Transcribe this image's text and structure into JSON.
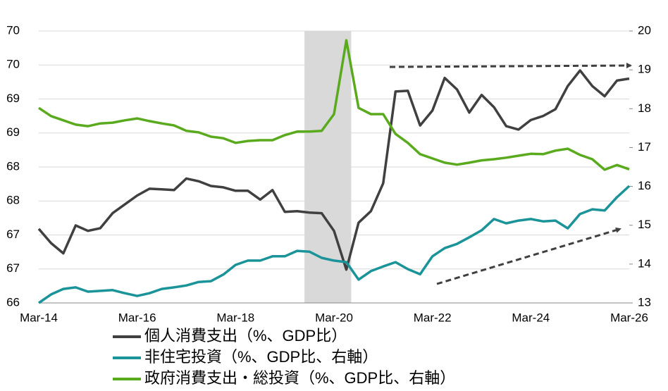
{
  "chart_data": {
    "type": "line",
    "categories": [
      "Mar-14",
      null,
      null,
      null,
      null,
      null,
      null,
      null,
      "Mar-16",
      null,
      null,
      null,
      null,
      null,
      null,
      null,
      "Mar-18",
      null,
      null,
      null,
      null,
      null,
      null,
      null,
      "Mar-20",
      null,
      null,
      null,
      null,
      null,
      null,
      null,
      "Mar-22",
      null,
      null,
      null,
      null,
      null,
      null,
      null,
      "Mar-24",
      null,
      null,
      null,
      null,
      null,
      null,
      null,
      "Mar-26"
    ],
    "series": [
      {
        "name": "個人消費支出（%、GDP比）",
        "color": "#404040",
        "axis": "y",
        "values": [
          67.09,
          66.88,
          66.73,
          67.14,
          67.06,
          67.1,
          67.32,
          67.45,
          67.58,
          67.68,
          67.67,
          67.66,
          67.83,
          67.79,
          67.72,
          67.7,
          67.65,
          67.65,
          67.52,
          67.66,
          67.34,
          67.35,
          67.33,
          67.32,
          67.06,
          66.49,
          67.18,
          67.35,
          67.76,
          69.11,
          69.12,
          68.61,
          68.83,
          69.31,
          69.14,
          68.8,
          69.06,
          68.88,
          68.6,
          68.55,
          68.69,
          68.75,
          68.85,
          69.19,
          69.42,
          69.19,
          69.04,
          69.27,
          69.3
        ]
      },
      {
        "name": "非住宅投資（%、GDP比、右軸）",
        "color": "#1a9399",
        "axis": "y2",
        "values": [
          13.0,
          13.22,
          13.36,
          13.4,
          13.29,
          13.31,
          13.33,
          13.25,
          13.18,
          13.25,
          13.36,
          13.4,
          13.45,
          13.54,
          13.56,
          13.73,
          13.98,
          14.09,
          14.09,
          14.2,
          14.2,
          14.34,
          14.32,
          14.16,
          14.09,
          14.05,
          13.6,
          13.82,
          13.94,
          14.05,
          13.87,
          13.74,
          14.2,
          14.41,
          14.52,
          14.69,
          14.87,
          15.16,
          15.05,
          15.12,
          15.16,
          15.1,
          15.12,
          14.92,
          15.29,
          15.41,
          15.38,
          15.72,
          16.01
        ]
      },
      {
        "name": "政府消費支出・総投資（%、GDP比、右軸）",
        "color": "#5aaa1e",
        "axis": "y2",
        "values": [
          18.02,
          17.81,
          17.7,
          17.59,
          17.55,
          17.62,
          17.64,
          17.7,
          17.75,
          17.68,
          17.62,
          17.57,
          17.43,
          17.39,
          17.28,
          17.24,
          17.12,
          17.17,
          17.19,
          17.19,
          17.32,
          17.41,
          17.41,
          17.43,
          17.86,
          19.76,
          18.02,
          17.86,
          17.86,
          17.35,
          17.12,
          16.83,
          16.72,
          16.61,
          16.56,
          16.61,
          16.67,
          16.7,
          16.74,
          16.79,
          16.84,
          16.83,
          16.92,
          16.97,
          16.81,
          16.7,
          16.43,
          16.55,
          16.44
        ]
      }
    ],
    "shade_x": [
      21.6,
      25.4
    ],
    "shade_color": "#d9d9d9",
    "ylim": [
      66,
      70
    ],
    "yticks": [
      66,
      {
        "value": 66.5,
        "label": "67"
      },
      67,
      {
        "value": 67.5,
        "label": "68"
      },
      68,
      {
        "value": 68.5,
        "label": "69"
      },
      69,
      {
        "value": 69.5,
        "label": "70"
      },
      70
    ],
    "y2lim": [
      13,
      20
    ],
    "y2ticks": [
      13,
      14,
      15,
      16,
      17,
      18,
      19,
      20
    ],
    "grid": true
  }
}
